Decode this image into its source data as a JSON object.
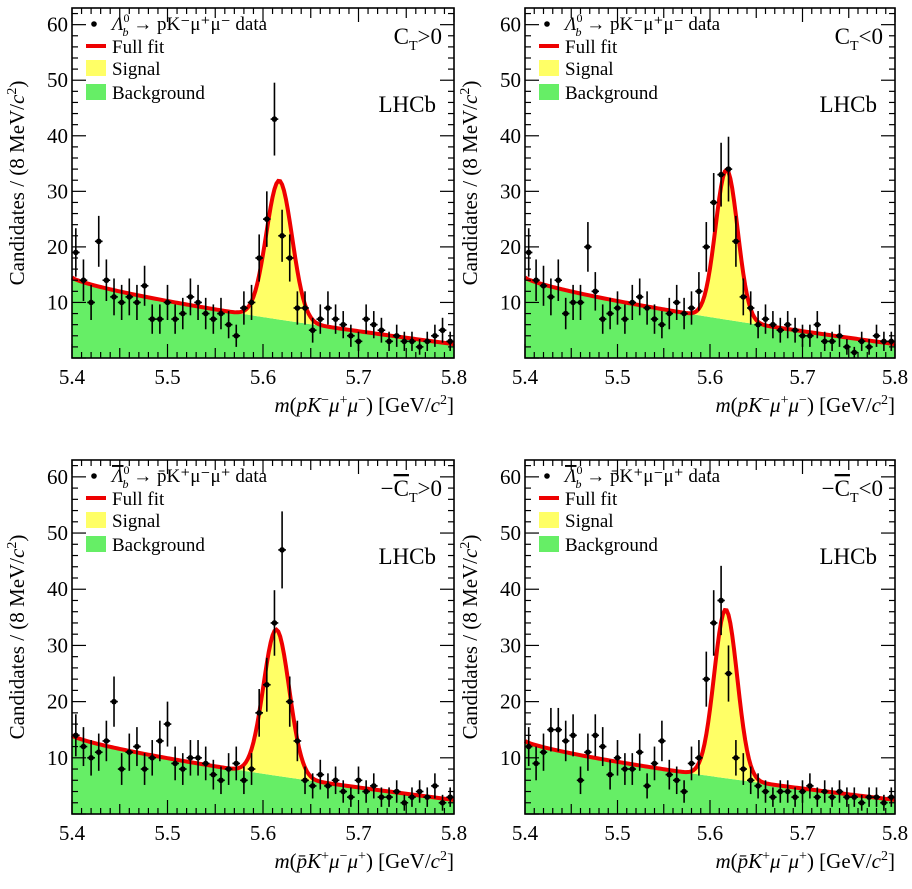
{
  "figure": {
    "y_axis_label": "Candidates / (8 MeV/c²)",
    "experiment_label": "LHCb"
  },
  "colors": {
    "signal": "#ffff66",
    "background": "#66ee66",
    "fit": "#ee0000",
    "data": "#000000"
  },
  "chart_data": [
    {
      "type": "line",
      "panel": "top-left",
      "condition": "C_T>0",
      "condition_display": {
        "prefix": "C",
        "sub": "T",
        "suffix": ">0",
        "bar": false
      },
      "xlabel": "m(pK⁻μ⁺μ⁻) [GeV/c²]",
      "xlim": [
        5.4,
        5.8
      ],
      "ylim": [
        0,
        63
      ],
      "xticks": [
        "5.4",
        "5.5",
        "5.6",
        "5.7",
        "5.8"
      ],
      "yticks": [
        "10",
        "20",
        "30",
        "40",
        "50",
        "60"
      ],
      "legend": {
        "data": "Λb0 → pK⁻μ⁺μ⁻ data",
        "decay_display": {
          "baryon": "Λ",
          "sub": "b",
          "sup": "0",
          "bar": false,
          "rest": "pK⁻μ⁺μ⁻ data"
        },
        "fit": "Full fit",
        "signal": "Signal",
        "background": "Background",
        "placement": "top-left"
      },
      "fit_model": {
        "peak_mass": 5.617,
        "peak_width": 0.0135,
        "signal_peak": 25,
        "bkg_start": 14.5,
        "bkg_end": 2.5
      },
      "series": [
        {
          "name": "data",
          "x": [
            5.404,
            5.412,
            5.42,
            5.428,
            5.436,
            5.444,
            5.452,
            5.46,
            5.468,
            5.476,
            5.484,
            5.492,
            5.5,
            5.508,
            5.516,
            5.524,
            5.532,
            5.54,
            5.548,
            5.556,
            5.564,
            5.572,
            5.58,
            5.588,
            5.596,
            5.604,
            5.612,
            5.62,
            5.628,
            5.636,
            5.644,
            5.652,
            5.66,
            5.668,
            5.676,
            5.684,
            5.692,
            5.7,
            5.708,
            5.716,
            5.724,
            5.732,
            5.74,
            5.748,
            5.756,
            5.764,
            5.772,
            5.78,
            5.788,
            5.796
          ],
          "y": [
            19,
            14,
            10,
            21,
            14,
            11,
            10,
            11,
            10,
            13,
            7,
            7,
            10,
            7,
            8,
            11,
            10,
            8,
            7,
            8,
            6,
            4,
            9,
            10,
            18,
            25,
            43,
            22,
            18,
            9,
            9,
            5,
            7,
            9,
            7,
            6,
            4,
            3,
            7,
            6,
            5,
            3,
            4,
            3,
            3,
            2,
            3,
            4,
            5,
            3
          ]
        }
      ]
    },
    {
      "type": "line",
      "panel": "top-right",
      "condition": "C_T<0",
      "condition_display": {
        "prefix": "C",
        "sub": "T",
        "suffix": "<0",
        "bar": false
      },
      "xlabel": "m(pK⁻μ⁺μ⁻) [GeV/c²]",
      "xlim": [
        5.4,
        5.8
      ],
      "ylim": [
        0,
        63
      ],
      "xticks": [
        "5.4",
        "5.5",
        "5.6",
        "5.7",
        "5.8"
      ],
      "yticks": [
        "10",
        "20",
        "30",
        "40",
        "50",
        "60"
      ],
      "legend": {
        "data": "Λb0 → pK⁻μ⁺μ⁻ data",
        "decay_display": {
          "baryon": "Λ",
          "sub": "b",
          "sup": "0",
          "bar": false,
          "rest": "pK⁻μ⁺μ⁻ data"
        },
        "fit": "Full fit",
        "signal": "Signal",
        "background": "Background",
        "placement": "top-left"
      },
      "fit_model": {
        "peak_mass": 5.618,
        "peak_width": 0.012,
        "signal_peak": 27,
        "bkg_start": 14.5,
        "bkg_end": 2.5
      },
      "series": [
        {
          "name": "data",
          "x": [
            5.404,
            5.412,
            5.42,
            5.428,
            5.436,
            5.444,
            5.452,
            5.46,
            5.468,
            5.476,
            5.484,
            5.492,
            5.5,
            5.508,
            5.516,
            5.524,
            5.532,
            5.54,
            5.548,
            5.556,
            5.564,
            5.572,
            5.58,
            5.588,
            5.596,
            5.604,
            5.612,
            5.62,
            5.628,
            5.636,
            5.644,
            5.652,
            5.66,
            5.668,
            5.676,
            5.684,
            5.692,
            5.7,
            5.708,
            5.716,
            5.724,
            5.732,
            5.74,
            5.748,
            5.756,
            5.764,
            5.772,
            5.78,
            5.788,
            5.796
          ],
          "y": [
            19,
            14,
            13,
            11,
            14,
            8,
            10,
            10,
            20,
            12,
            7,
            8,
            9,
            7,
            10,
            11,
            9,
            7,
            6,
            8,
            10,
            8,
            9,
            12,
            20,
            28,
            33,
            34,
            21,
            11,
            9,
            6,
            7,
            6,
            5,
            6,
            5,
            4,
            4,
            6,
            3,
            3,
            4,
            2,
            1,
            3,
            2,
            4,
            3,
            3
          ]
        }
      ]
    },
    {
      "type": "line",
      "panel": "bottom-left",
      "condition": "−C_T>0",
      "condition_display": {
        "prefix": "−",
        "body": "C",
        "sub": "T",
        "suffix": ">0",
        "bar": true
      },
      "xlabel": "m(p̄K⁺μ⁻μ⁺) [GeV/c²]",
      "xlim": [
        5.4,
        5.8
      ],
      "ylim": [
        0,
        63
      ],
      "xticks": [
        "5.4",
        "5.5",
        "5.6",
        "5.7",
        "5.8"
      ],
      "yticks": [
        "10",
        "20",
        "30",
        "40",
        "50",
        "60"
      ],
      "legend": {
        "data": "Λ̄b0 → p̄K⁺μ⁻μ⁺ data",
        "decay_display": {
          "baryon": "Λ",
          "sub": "b",
          "sup": "0",
          "bar": true,
          "rest": "p̄K⁺μ⁻μ⁺ data"
        },
        "fit": "Full fit",
        "signal": "Signal",
        "background": "Background",
        "placement": "top-left"
      },
      "fit_model": {
        "peak_mass": 5.614,
        "peak_width": 0.0135,
        "signal_peak": 26,
        "bkg_start": 14.0,
        "bkg_end": 2.5
      },
      "series": [
        {
          "name": "data",
          "x": [
            5.404,
            5.412,
            5.42,
            5.428,
            5.436,
            5.444,
            5.452,
            5.46,
            5.468,
            5.476,
            5.484,
            5.492,
            5.5,
            5.508,
            5.516,
            5.524,
            5.532,
            5.54,
            5.548,
            5.556,
            5.564,
            5.572,
            5.58,
            5.588,
            5.596,
            5.604,
            5.612,
            5.62,
            5.628,
            5.636,
            5.644,
            5.652,
            5.66,
            5.668,
            5.676,
            5.684,
            5.692,
            5.7,
            5.708,
            5.716,
            5.724,
            5.732,
            5.74,
            5.748,
            5.756,
            5.764,
            5.772,
            5.78,
            5.788,
            5.796
          ],
          "y": [
            14,
            12,
            10,
            11,
            13,
            20,
            8,
            11,
            12,
            8,
            10,
            13,
            16,
            9,
            8,
            10,
            10,
            9,
            7,
            6,
            8,
            9,
            6,
            8,
            18,
            23,
            34,
            47,
            20,
            13,
            6,
            5,
            7,
            5,
            6,
            4,
            3,
            6,
            4,
            5,
            3,
            3,
            4,
            2,
            3,
            4,
            3,
            5,
            2,
            3
          ]
        }
      ]
    },
    {
      "type": "line",
      "panel": "bottom-right",
      "condition": "−C_T<0",
      "condition_display": {
        "prefix": "−",
        "body": "C",
        "sub": "T",
        "suffix": "<0",
        "bar": true
      },
      "xlabel": "m(p̄K⁺μ⁻μ⁺) [GeV/c²]",
      "xlim": [
        5.4,
        5.8
      ],
      "ylim": [
        0,
        63
      ],
      "xticks": [
        "5.4",
        "5.5",
        "5.6",
        "5.7",
        "5.8"
      ],
      "yticks": [
        "10",
        "20",
        "30",
        "40",
        "50",
        "60"
      ],
      "legend": {
        "data": "Λ̄b0 → p̄K⁺μ⁻μ⁺ data",
        "decay_display": {
          "baryon": "Λ",
          "sub": "b",
          "sup": "0",
          "bar": true,
          "rest": "p̄K⁺μ⁻μ⁺ data"
        },
        "fit": "Full fit",
        "signal": "Signal",
        "background": "Background",
        "placement": "top-left"
      },
      "fit_model": {
        "peak_mass": 5.617,
        "peak_width": 0.0125,
        "signal_peak": 30,
        "bkg_start": 13.0,
        "bkg_end": 2.5
      },
      "series": [
        {
          "name": "data",
          "x": [
            5.404,
            5.412,
            5.42,
            5.428,
            5.436,
            5.444,
            5.452,
            5.46,
            5.468,
            5.476,
            5.484,
            5.492,
            5.5,
            5.508,
            5.516,
            5.524,
            5.532,
            5.54,
            5.548,
            5.556,
            5.564,
            5.572,
            5.58,
            5.588,
            5.596,
            5.604,
            5.612,
            5.62,
            5.628,
            5.636,
            5.644,
            5.652,
            5.66,
            5.668,
            5.676,
            5.684,
            5.692,
            5.7,
            5.708,
            5.716,
            5.724,
            5.732,
            5.74,
            5.748,
            5.756,
            5.764,
            5.772,
            5.78,
            5.788,
            5.796
          ],
          "y": [
            12,
            9,
            11,
            15,
            15,
            13,
            14,
            6,
            11,
            14,
            12,
            7,
            10,
            8,
            8,
            11,
            5,
            9,
            13,
            7,
            6,
            4,
            9,
            10,
            24,
            34,
            38,
            25,
            10,
            8,
            6,
            5,
            4,
            3,
            4,
            4,
            3,
            4,
            5,
            3,
            4,
            3,
            4,
            3,
            3,
            2,
            3,
            3,
            2,
            3
          ]
        }
      ]
    }
  ]
}
